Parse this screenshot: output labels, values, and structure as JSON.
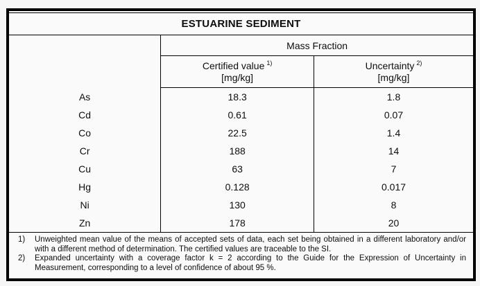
{
  "page": {
    "background_color": "#f6f6f6",
    "border_color": "#000000",
    "text_color": "#0d0d0d"
  },
  "title": "ESTUARINE SEDIMENT",
  "header": {
    "group_label": "Mass Fraction",
    "columns": [
      {
        "label": "Certified value",
        "sup": "1)",
        "unit": "[mg/kg]"
      },
      {
        "label": "Uncertainty",
        "sup": "2)",
        "unit": "[mg/kg]"
      }
    ]
  },
  "rows": [
    {
      "element": "As",
      "certified_value": "18.3",
      "uncertainty": "1.8"
    },
    {
      "element": "Cd",
      "certified_value": "0.61",
      "uncertainty": "0.07"
    },
    {
      "element": "Co",
      "certified_value": "22.5",
      "uncertainty": "1.4"
    },
    {
      "element": "Cr",
      "certified_value": "188",
      "uncertainty": "14"
    },
    {
      "element": "Cu",
      "certified_value": "63",
      "uncertainty": "7"
    },
    {
      "element": "Hg",
      "certified_value": "0.128",
      "uncertainty": "0.017"
    },
    {
      "element": "Ni",
      "certified_value": "130",
      "uncertainty": "8"
    },
    {
      "element": "Zn",
      "certified_value": "178",
      "uncertainty": "20"
    }
  ],
  "footnotes": [
    {
      "marker": "1)",
      "text": "Unweighted mean value of the means of accepted sets of data, each set being obtained in a different laboratory and/or with a different method of determination. The certified values are traceable to the SI."
    },
    {
      "marker": "2)",
      "text": "Expanded uncertainty with a coverage factor k = 2 according to the Guide for the Expression of Uncertainty in Measurement, corresponding to a level of confidence of about 95 %."
    }
  ]
}
